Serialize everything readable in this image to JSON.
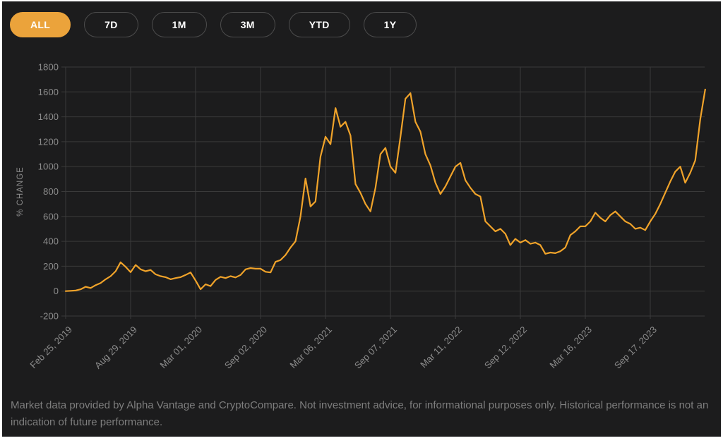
{
  "toolbar": {
    "ranges": [
      {
        "label": "ALL",
        "active": true
      },
      {
        "label": "7D",
        "active": false
      },
      {
        "label": "1M",
        "active": false
      },
      {
        "label": "3M",
        "active": false
      },
      {
        "label": "YTD",
        "active": false
      },
      {
        "label": "1Y",
        "active": false
      }
    ]
  },
  "chart_data": {
    "type": "line",
    "title": "",
    "xlabel": "",
    "ylabel": "% CHANGE",
    "ylim": [
      -200,
      1800
    ],
    "y_ticks": [
      1800,
      1600,
      1400,
      1200,
      1000,
      800,
      600,
      400,
      200,
      0,
      -200
    ],
    "grid": true,
    "legend": "none",
    "x_ticks": [
      {
        "label": "Feb 25, 2019",
        "index": 0
      },
      {
        "label": "Aug 29, 2019",
        "index": 13
      },
      {
        "label": "Mar 01, 2020",
        "index": 26
      },
      {
        "label": "Sep 02, 2020",
        "index": 39
      },
      {
        "label": "Mar 06, 2021",
        "index": 52
      },
      {
        "label": "Sep 07, 2021",
        "index": 65
      },
      {
        "label": "Mar 11, 2022",
        "index": 78
      },
      {
        "label": "Sep 12, 2022",
        "index": 91
      },
      {
        "label": "Mar 16, 2023",
        "index": 104
      },
      {
        "label": "Sep 17, 2023",
        "index": 117
      }
    ],
    "points_per_tick": 13,
    "series": [
      {
        "name": "% change",
        "color": "#F0A32A",
        "values": [
          0,
          2,
          5,
          15,
          35,
          25,
          48,
          65,
          95,
          120,
          160,
          232,
          195,
          152,
          210,
          175,
          160,
          170,
          135,
          120,
          112,
          95,
          105,
          112,
          130,
          150,
          85,
          15,
          55,
          40,
          90,
          115,
          105,
          120,
          110,
          130,
          175,
          185,
          180,
          180,
          155,
          150,
          235,
          250,
          290,
          350,
          400,
          600,
          905,
          680,
          720,
          1080,
          1240,
          1180,
          1470,
          1320,
          1360,
          1250,
          860,
          790,
          700,
          640,
          830,
          1100,
          1150,
          1000,
          950,
          1240,
          1545,
          1590,
          1360,
          1280,
          1100,
          1010,
          870,
          780,
          840,
          920,
          1000,
          1030,
          890,
          830,
          780,
          760,
          560,
          520,
          480,
          500,
          460,
          370,
          420,
          390,
          410,
          380,
          390,
          370,
          300,
          310,
          305,
          320,
          350,
          450,
          480,
          520,
          520,
          560,
          630,
          590,
          560,
          610,
          640,
          600,
          560,
          540,
          500,
          510,
          490,
          560,
          620,
          700,
          790,
          880,
          960,
          1000,
          870,
          950,
          1050,
          1380,
          1620
        ]
      }
    ]
  },
  "footer": {
    "disclaimer": "Market data provided by Alpha Vantage and CryptoCompare. Not investment advice, for informational purposes only. Historical performance is not an indication of future performance."
  },
  "theme": {
    "accent": "#EBA33B",
    "line_color": "#F0A32A",
    "panel_bg": "#1C1C1D",
    "grid_color": "#3A3A3A",
    "tick_text": "#8C8C8C",
    "muted_text": "#7E7E7E"
  }
}
